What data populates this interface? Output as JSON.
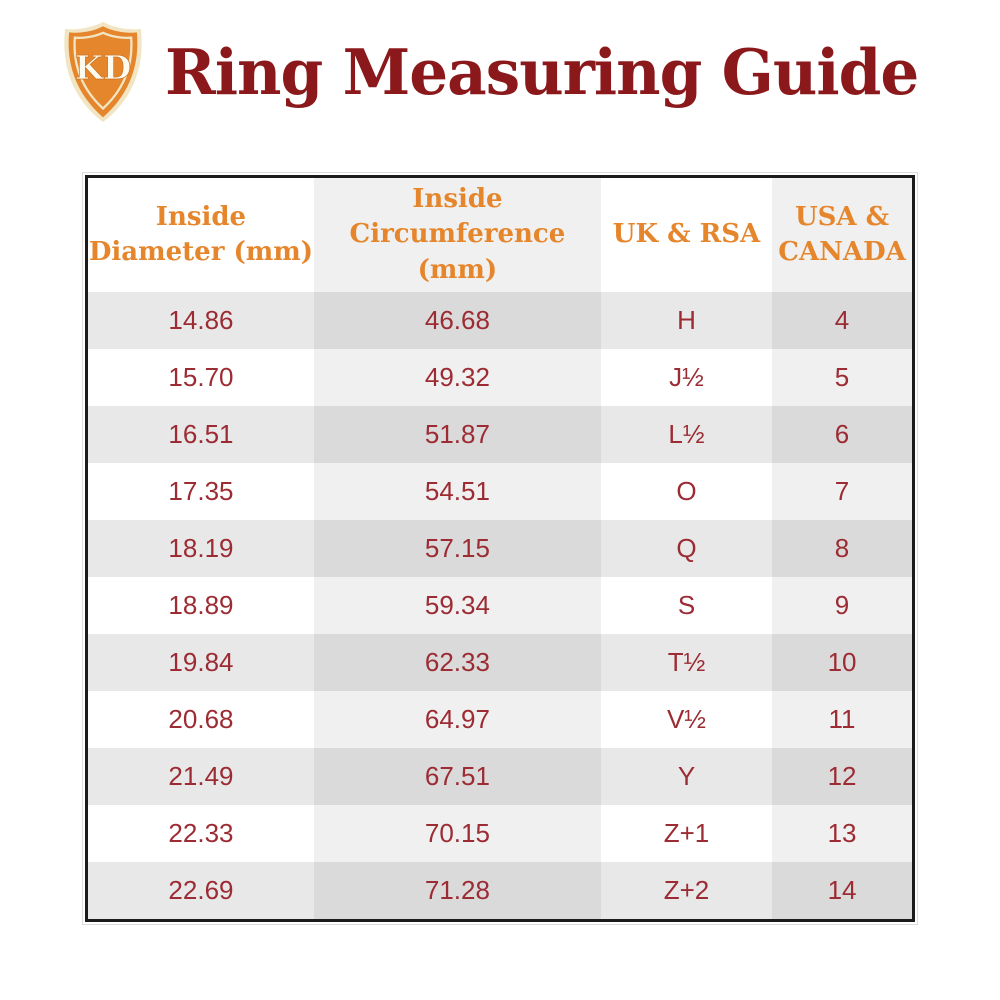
{
  "header": {
    "logo_text": "KD",
    "title": "Ring Measuring Guide"
  },
  "colors": {
    "accent_orange": "#e6862c",
    "logo_cream": "#f1e5c3",
    "title_red": "#8b191c",
    "data_red": "#9c2b33",
    "row_gray": "#e8e8e8",
    "table_border": "#1b1b1b"
  },
  "chart_data": {
    "type": "table",
    "title": "Ring Measuring Guide",
    "columns": [
      {
        "label": "Inside Diameter (mm)",
        "lines": [
          "Inside",
          "Diameter (mm)"
        ]
      },
      {
        "label": "Inside Circumference (mm)",
        "lines": [
          "Inside",
          "Circumference (mm)"
        ]
      },
      {
        "label": "UK & RSA",
        "lines": [
          "UK & RSA"
        ]
      },
      {
        "label": "USA & CANADA",
        "lines": [
          "USA &",
          "CANADA"
        ]
      }
    ],
    "rows": [
      [
        "14.86",
        "46.68",
        "H",
        "4"
      ],
      [
        "15.70",
        "49.32",
        "J½",
        "5"
      ],
      [
        "16.51",
        "51.87",
        "L½",
        "6"
      ],
      [
        "17.35",
        "54.51",
        "O",
        "7"
      ],
      [
        "18.19",
        "57.15",
        "Q",
        "8"
      ],
      [
        "18.89",
        "59.34",
        "S",
        "9"
      ],
      [
        "19.84",
        "62.33",
        "T½",
        "10"
      ],
      [
        "20.68",
        "64.97",
        "V½",
        "11"
      ],
      [
        "21.49",
        "67.51",
        "Y",
        "12"
      ],
      [
        "22.33",
        "70.15",
        "Z+1",
        "13"
      ],
      [
        "22.69",
        "71.28",
        "Z+2",
        "14"
      ]
    ]
  }
}
